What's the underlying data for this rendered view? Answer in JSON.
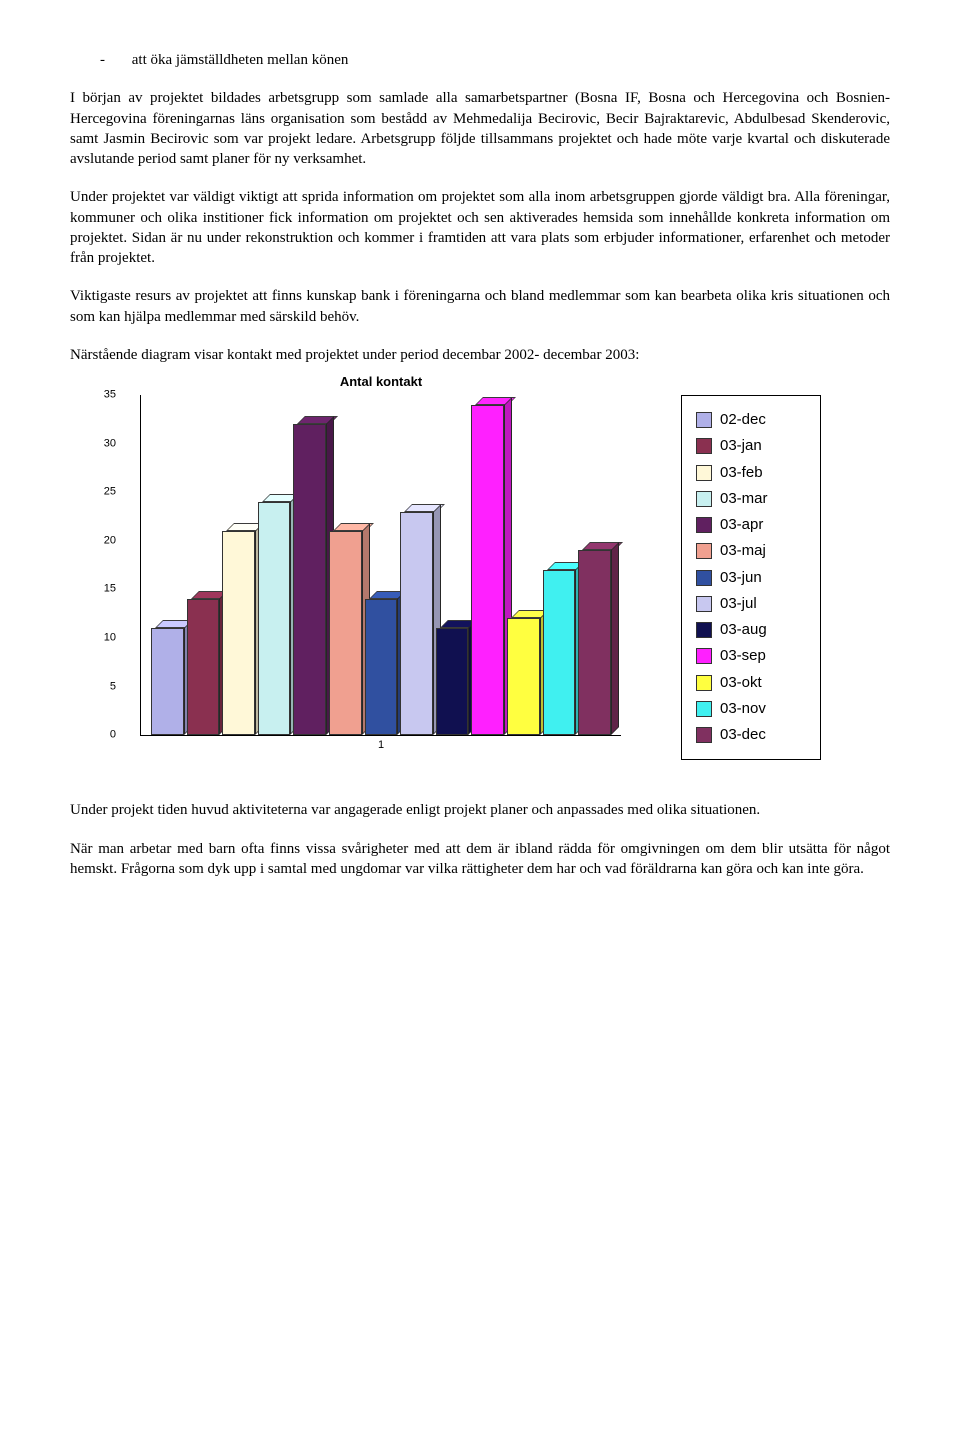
{
  "bullet": "att öka jämställdheten mellan könen",
  "paragraphs": [
    "I början av projektet bildades arbetsgrupp som samlade alla samarbetspartner (Bosna IF, Bosna och Hercegovina och Bosnien-Hercegovina föreningarnas läns organisation som bestådd av Mehmedalija Becirovic, Becir Bajraktarevic, Abdulbesad Skenderovic, samt Jasmin Becirovic som var projekt ledare. Arbetsgrupp följde tillsammans projektet och hade möte varje kvartal och diskuterade avslutande period samt planer för ny verksamhet.",
    "Under projektet var väldigt viktigt att sprida information om projektet som alla inom arbetsgruppen gjorde väldigt bra. Alla föreningar, kommuner och olika institioner fick information om projektet och sen aktiverades hemsida som innehållde konkreta information om projektet. Sidan är nu under rekonstruktion och kommer i framtiden att vara plats som erbjuder informationer, erfarenhet och metoder från projektet.",
    "Viktigaste resurs av projektet att finns kunskap bank i föreningarna och bland medlemmar som kan bearbeta olika kris situationen och som kan hjälpa medlemmar med särskild behöv.",
    "Närstående diagram visar kontakt med projektet under period decembar 2002- decembar 2003:"
  ],
  "chart": {
    "title": "Antal kontakt",
    "type": "bar3d",
    "y_max": 35,
    "y_step": 5,
    "y_ticks": [
      0,
      5,
      10,
      15,
      20,
      25,
      30,
      35
    ],
    "x_label": "1",
    "background_color": "#ffffff",
    "series": [
      {
        "label": "02-dec",
        "value": 11,
        "color": "#b0b0e8"
      },
      {
        "label": "03-jan",
        "value": 14,
        "color": "#8a3050"
      },
      {
        "label": "03-feb",
        "value": 21,
        "color": "#fff8d8"
      },
      {
        "label": "03-mar",
        "value": 24,
        "color": "#c8f0f0"
      },
      {
        "label": "03-apr",
        "value": 32,
        "color": "#602060"
      },
      {
        "label": "03-maj",
        "value": 21,
        "color": "#f0a090"
      },
      {
        "label": "03-jun",
        "value": 14,
        "color": "#3050a0"
      },
      {
        "label": "03-jul",
        "value": 23,
        "color": "#c8c8f0"
      },
      {
        "label": "03-aug",
        "value": 11,
        "color": "#101050"
      },
      {
        "label": "03-sep",
        "value": 34,
        "color": "#ff20ff"
      },
      {
        "label": "03-okt",
        "value": 12,
        "color": "#ffff40"
      },
      {
        "label": "03-nov",
        "value": 17,
        "color": "#40f0f0"
      },
      {
        "label": "03-dec",
        "value": 19,
        "color": "#803060"
      }
    ]
  },
  "footer_paragraphs": [
    "Under projekt tiden huvud aktiviteterna var angagerade enligt projekt planer och anpassades med olika situationen.",
    "När man arbetar med barn ofta finns vissa svårigheter med att dem är ibland rädda för omgivningen om dem blir utsätta för något hemskt. Frågorna som dyk upp i samtal med ungdomar var vilka rättigheter dem har och vad föräldrarna kan göra och kan inte göra."
  ]
}
